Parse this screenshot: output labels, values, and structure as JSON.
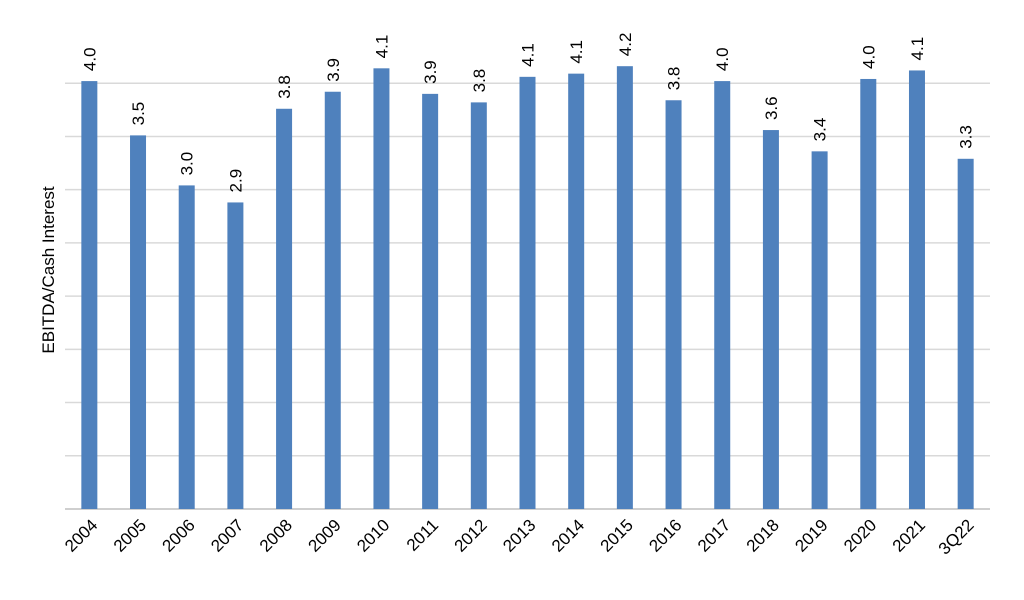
{
  "chart_data": {
    "type": "bar",
    "y_label": "EBITDA/Cash Interest",
    "categories": [
      "2004",
      "2005",
      "2006",
      "2007",
      "2008",
      "2009",
      "2010",
      "2011",
      "2012",
      "2013",
      "2014",
      "2015",
      "2016",
      "2017",
      "2018",
      "2019",
      "2020",
      "2021",
      "3Q22"
    ],
    "values": [
      4.02,
      3.51,
      3.04,
      2.88,
      3.76,
      3.92,
      4.14,
      3.9,
      3.82,
      4.06,
      4.09,
      4.16,
      3.84,
      4.02,
      3.56,
      3.36,
      4.04,
      4.12,
      3.29
    ],
    "value_labels": [
      "4.0",
      "3.5",
      "3.0",
      "2.9",
      "3.8",
      "3.9",
      "4.1",
      "3.9",
      "3.8",
      "4.1",
      "4.1",
      "4.2",
      "3.8",
      "4.0",
      "3.6",
      "3.4",
      "4.0",
      "4.1",
      "3.3"
    ],
    "color": "#4f81bd",
    "ylim": [
      0,
      4.5
    ],
    "yticks": [
      0,
      0.5,
      1,
      1.5,
      2,
      2.5,
      3,
      3.5,
      4
    ],
    "grid": true
  }
}
